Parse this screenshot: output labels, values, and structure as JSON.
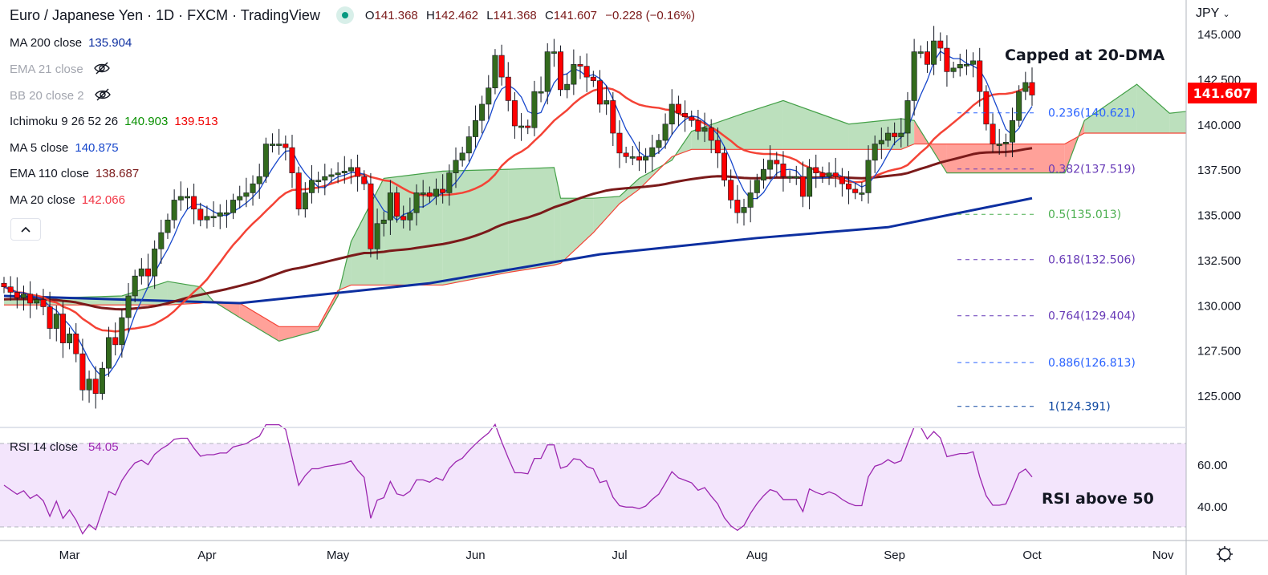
{
  "header": {
    "title": "Euro / Japanese Yen · 1D · FXCM · TradingView",
    "ohlc": {
      "o_label": "O",
      "o": "141.368",
      "h_label": "H",
      "h": "142.462",
      "l_label": "L",
      "l": "141.368",
      "c_label": "C",
      "c": "141.607",
      "change": "−0.228 (−0.16%)"
    }
  },
  "legend": [
    {
      "name": "MA 200 close",
      "values": [
        "135.904"
      ],
      "colors": [
        "#0d2fa0"
      ],
      "hidden": false
    },
    {
      "name": "EMA 21 close",
      "values": [],
      "colors": [],
      "hidden": true
    },
    {
      "name": "BB 20 close 2",
      "values": [],
      "colors": [],
      "hidden": true
    },
    {
      "name": "Ichimoku 9 26 52 26",
      "values": [
        "140.903",
        "139.513"
      ],
      "colors": [
        "#089000",
        "#f00000"
      ],
      "hidden": false
    },
    {
      "name": "MA 5 close",
      "values": [
        "140.875"
      ],
      "colors": [
        "#1848cc"
      ],
      "hidden": false
    },
    {
      "name": "EMA 110 close",
      "values": [
        "138.687"
      ],
      "colors": [
        "#7b1a1a"
      ],
      "hidden": false
    },
    {
      "name": "MA 20 close",
      "values": [
        "142.066"
      ],
      "colors": [
        "#f23645"
      ],
      "hidden": false
    }
  ],
  "collapse_icon": "chevron-up-icon",
  "currency": "JPY",
  "current_price": "141.607",
  "annotations": {
    "top": "Capped at 20-DMA",
    "rsi": "RSI above 50"
  },
  "rsi_legend": {
    "name": "RSI 14 close",
    "value": "54.05"
  },
  "colors": {
    "up": "#336a1d",
    "down": "#ff0000",
    "ma5": "#1848cc",
    "ma20": "#f44336",
    "ema110": "#7b1a1a",
    "ma200": "#0d2fa0",
    "cloud_up": "#a5d6a7",
    "cloud_down": "#ff8a80",
    "rsi": "#9c27b0"
  },
  "chart_data": {
    "type": "candlestick",
    "title": "Euro / Japanese Yen · 1D · FXCM",
    "price_axis": {
      "ticks": [
        "145.000",
        "142.500",
        "140.000",
        "137.500",
        "135.000",
        "132.500",
        "130.000",
        "127.500",
        "125.000"
      ],
      "range": [
        123.5,
        145.8
      ]
    },
    "time_axis": {
      "ticks": [
        "Mar",
        "Apr",
        "May",
        "Jun",
        "Jul",
        "Aug",
        "Sep",
        "Oct",
        "Nov"
      ],
      "tick_bars": [
        10,
        31,
        51,
        72,
        94,
        115,
        136,
        157,
        177
      ]
    },
    "close": [
      131.0,
      130.7,
      130.4,
      130.6,
      130.1,
      130.3,
      129.9,
      128.7,
      129.5,
      127.9,
      128.4,
      127.3,
      125.3,
      125.9,
      125.1,
      126.5,
      128.2,
      127.8,
      129.3,
      130.5,
      131.6,
      132.0,
      131.6,
      133.1,
      134.0,
      134.7,
      135.8,
      136.0,
      136.0,
      135.3,
      134.7,
      134.9,
      134.9,
      135.1,
      135.1,
      135.8,
      136.0,
      136.2,
      136.7,
      137.1,
      138.9,
      138.9,
      138.9,
      138.7,
      137.3,
      135.3,
      136.2,
      136.9,
      136.9,
      137.1,
      137.2,
      137.3,
      137.4,
      137.6,
      137.1,
      136.7,
      133.1,
      134.5,
      134.7,
      136.2,
      134.9,
      134.7,
      135.1,
      136.2,
      136.2,
      136.0,
      136.4,
      136.2,
      137.3,
      138.0,
      138.4,
      139.3,
      140.2,
      141.1,
      142.0,
      143.8,
      142.6,
      141.3,
      139.9,
      139.9,
      139.8,
      141.8,
      141.8,
      144.0,
      144.0,
      141.9,
      142.2,
      143.3,
      143.2,
      142.6,
      142.4,
      141.1,
      141.3,
      139.5,
      138.4,
      138.2,
      138.2,
      138.0,
      138.2,
      138.7,
      139.1,
      140.0,
      141.1,
      140.6,
      140.4,
      140.2,
      139.6,
      139.8,
      139.1,
      138.4,
      136.9,
      135.8,
      135.1,
      135.4,
      136.2,
      136.9,
      137.5,
      138.0,
      137.8,
      137.1,
      137.1,
      137.1,
      136.0,
      137.6,
      137.3,
      137.1,
      137.3,
      137.1,
      136.7,
      136.4,
      136.2,
      136.2,
      138.0,
      138.9,
      139.1,
      139.5,
      139.3,
      139.5,
      141.3,
      144.0,
      144.0,
      143.3,
      144.6,
      144.2,
      142.9,
      143.1,
      143.3,
      143.3,
      143.5,
      141.8,
      140.0,
      138.9,
      138.9,
      139.0,
      140.2,
      141.8,
      142.3,
      141.607
    ],
    "ma200_keypoints": [
      [
        0,
        130.5
      ],
      [
        36,
        130.1
      ],
      [
        65,
        131.2
      ],
      [
        91,
        132.8
      ],
      [
        115,
        133.7
      ],
      [
        135,
        134.3
      ],
      [
        157,
        135.9
      ]
    ],
    "ichimoku_cloud": [
      [
        0,
        130.3,
        130.0
      ],
      [
        18,
        130.5,
        130.0
      ],
      [
        25,
        131.3,
        130.0
      ],
      [
        30,
        131.0,
        130.1
      ],
      [
        32,
        130.2,
        130.2
      ],
      [
        36,
        129.3,
        130.1
      ],
      [
        42,
        128.0,
        128.8
      ],
      [
        48,
        128.6,
        128.8
      ],
      [
        51,
        130.5,
        130.8
      ],
      [
        53,
        133.5,
        131.1
      ],
      [
        58,
        137.0,
        131.1
      ],
      [
        67,
        137.4,
        131.1
      ],
      [
        77,
        137.5,
        131.8
      ],
      [
        84,
        137.6,
        132.2
      ],
      [
        85,
        135.9,
        132.3
      ],
      [
        90,
        135.9,
        134.0
      ],
      [
        94,
        136.0,
        135.6
      ],
      [
        97,
        137.0,
        136.4
      ],
      [
        102,
        138.0,
        138.2
      ],
      [
        105,
        139.6,
        138.6
      ],
      [
        113,
        140.6,
        138.6
      ],
      [
        119,
        141.3,
        138.6
      ],
      [
        129,
        140.0,
        138.6
      ],
      [
        137,
        140.3,
        138.6
      ],
      [
        139,
        140.2,
        138.9
      ],
      [
        144,
        137.3,
        138.9
      ],
      [
        162,
        137.3,
        138.9
      ],
      [
        165,
        140.2,
        139.5
      ],
      [
        173,
        142.2,
        139.5
      ],
      [
        178,
        140.6,
        139.5
      ],
      [
        181,
        140.7,
        139.5
      ]
    ],
    "fib_levels": [
      {
        "label": "0.236(140.621)",
        "price": 140.621,
        "color": "#2962ff"
      },
      {
        "label": "0.382(137.519)",
        "price": 137.519,
        "color": "#673ab7"
      },
      {
        "label": "0.5(135.013)",
        "price": 135.013,
        "color": "#4caf50"
      },
      {
        "label": "0.618(132.506)",
        "price": 132.506,
        "color": "#673ab7"
      },
      {
        "label": "0.764(129.404)",
        "price": 129.404,
        "color": "#673ab7"
      },
      {
        "label": "0.886(126.813)",
        "price": 126.813,
        "color": "#2962ff"
      },
      {
        "label": "1(124.391)",
        "price": 124.391,
        "color": "#0d47a1"
      }
    ],
    "rsi": {
      "period": 14,
      "ticks": [
        "60.00",
        "40.00"
      ],
      "band": [
        30,
        70
      ]
    }
  }
}
